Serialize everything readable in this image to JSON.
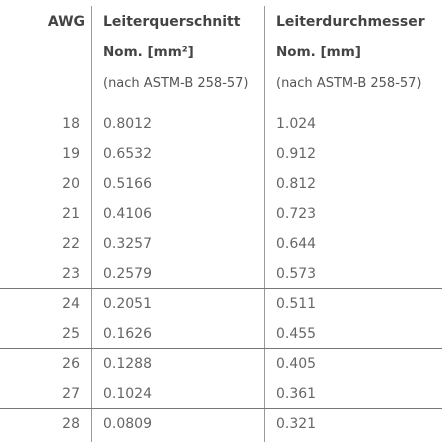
{
  "columns": [
    {
      "title": "AWG"
    },
    {
      "title": "Leiterquerschnitt",
      "unit": "Nom. [mm²]",
      "note": "(nach ASTM-B 258-57)"
    },
    {
      "title": "Leiterdurchmesser",
      "unit": "Nom. [mm]",
      "note": "(nach ASTM-B 258-57)"
    }
  ],
  "rows": [
    [
      "18",
      "0.8012",
      "1.024"
    ],
    [
      "19",
      "0.6532",
      "0.912"
    ],
    [
      "20",
      "0.5166",
      "0.812"
    ],
    [
      "21",
      "0.4106",
      "0.723"
    ],
    [
      "22",
      "0.3257",
      "0.644"
    ],
    [
      "23",
      "0.2579",
      "0.573"
    ],
    [
      "24",
      "0.2051",
      "0.511"
    ],
    [
      "25",
      "0.1626",
      "0.455"
    ],
    [
      "26",
      "0.1288",
      "0.405"
    ],
    [
      "27",
      "0.1024",
      "0.361"
    ],
    [
      "28",
      "0.0809",
      "0.321"
    ]
  ]
}
